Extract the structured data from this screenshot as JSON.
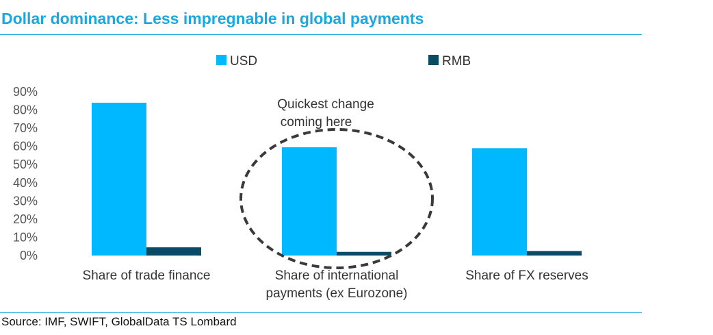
{
  "header": {
    "title": "Dollar dominance: Less impregnable in global payments"
  },
  "footer": {
    "source": "Source: IMF, SWIFT, GlobalData TS Lombard"
  },
  "chart_data": {
    "type": "bar",
    "title": "Dollar dominance: Less impregnable in global payments",
    "categories": [
      [
        "Share of trade finance"
      ],
      [
        "Share of international",
        "payments (ex Eurozone)"
      ],
      [
        "Share of FX reserves"
      ]
    ],
    "series": [
      {
        "name": "USD",
        "color": "#00b8ff",
        "values": [
          84,
          59.5,
          59
        ]
      },
      {
        "name": "RMB",
        "color": "#0b4a63",
        "values": [
          4.5,
          2,
          2.5
        ]
      }
    ],
    "y_ticks": [
      "0%",
      "10%",
      "20%",
      "30%",
      "40%",
      "50%",
      "60%",
      "70%",
      "80%",
      "90%"
    ],
    "ylim": [
      0,
      90
    ],
    "grid": false,
    "legend_position": "top-center",
    "annotation": {
      "lines": [
        "Quickest change",
        "coming here"
      ],
      "target_category": 1,
      "style": "dashed-ellipse"
    }
  }
}
